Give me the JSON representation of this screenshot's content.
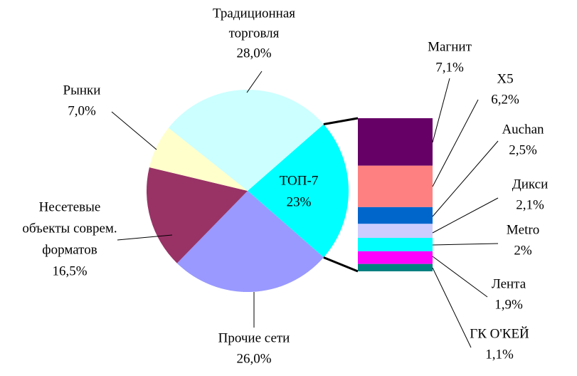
{
  "chart_data": {
    "type": "pie",
    "categories": [
      [
        "ТОП-7"
      ],
      [
        "Прочие сети"
      ],
      [
        "Несетевые",
        "объекты соврем.",
        "форматов"
      ],
      [
        "Рынки"
      ],
      [
        "Традиционная",
        "торговля"
      ]
    ],
    "values": [
      23,
      26.0,
      16.5,
      7.0,
      28.0
    ],
    "value_labels": [
      "23%",
      "26,0%",
      "16,5%",
      "7,0%",
      "28,0%"
    ],
    "colors": [
      "#00ffff",
      "#9999ff",
      "#993366",
      "#ffffcc",
      "#ccffff"
    ],
    "sub_categories": [
      "Магнит",
      "X5",
      "Auchan",
      "Дикси",
      "Metro",
      "Лента",
      "ГК О'КЕЙ"
    ],
    "sub_values": [
      7.1,
      6.2,
      2.5,
      2.1,
      2,
      1.9,
      1.1
    ],
    "sub_value_labels": [
      "7,1%",
      "6,2%",
      "2,5%",
      "2,1%",
      "2%",
      "1,9%",
      "1,1%"
    ],
    "sub_colors": [
      "#660066",
      "#ff8080",
      "#0066cc",
      "#ccccff",
      "#00ffff",
      "#ff00ff",
      "#008080"
    ]
  }
}
